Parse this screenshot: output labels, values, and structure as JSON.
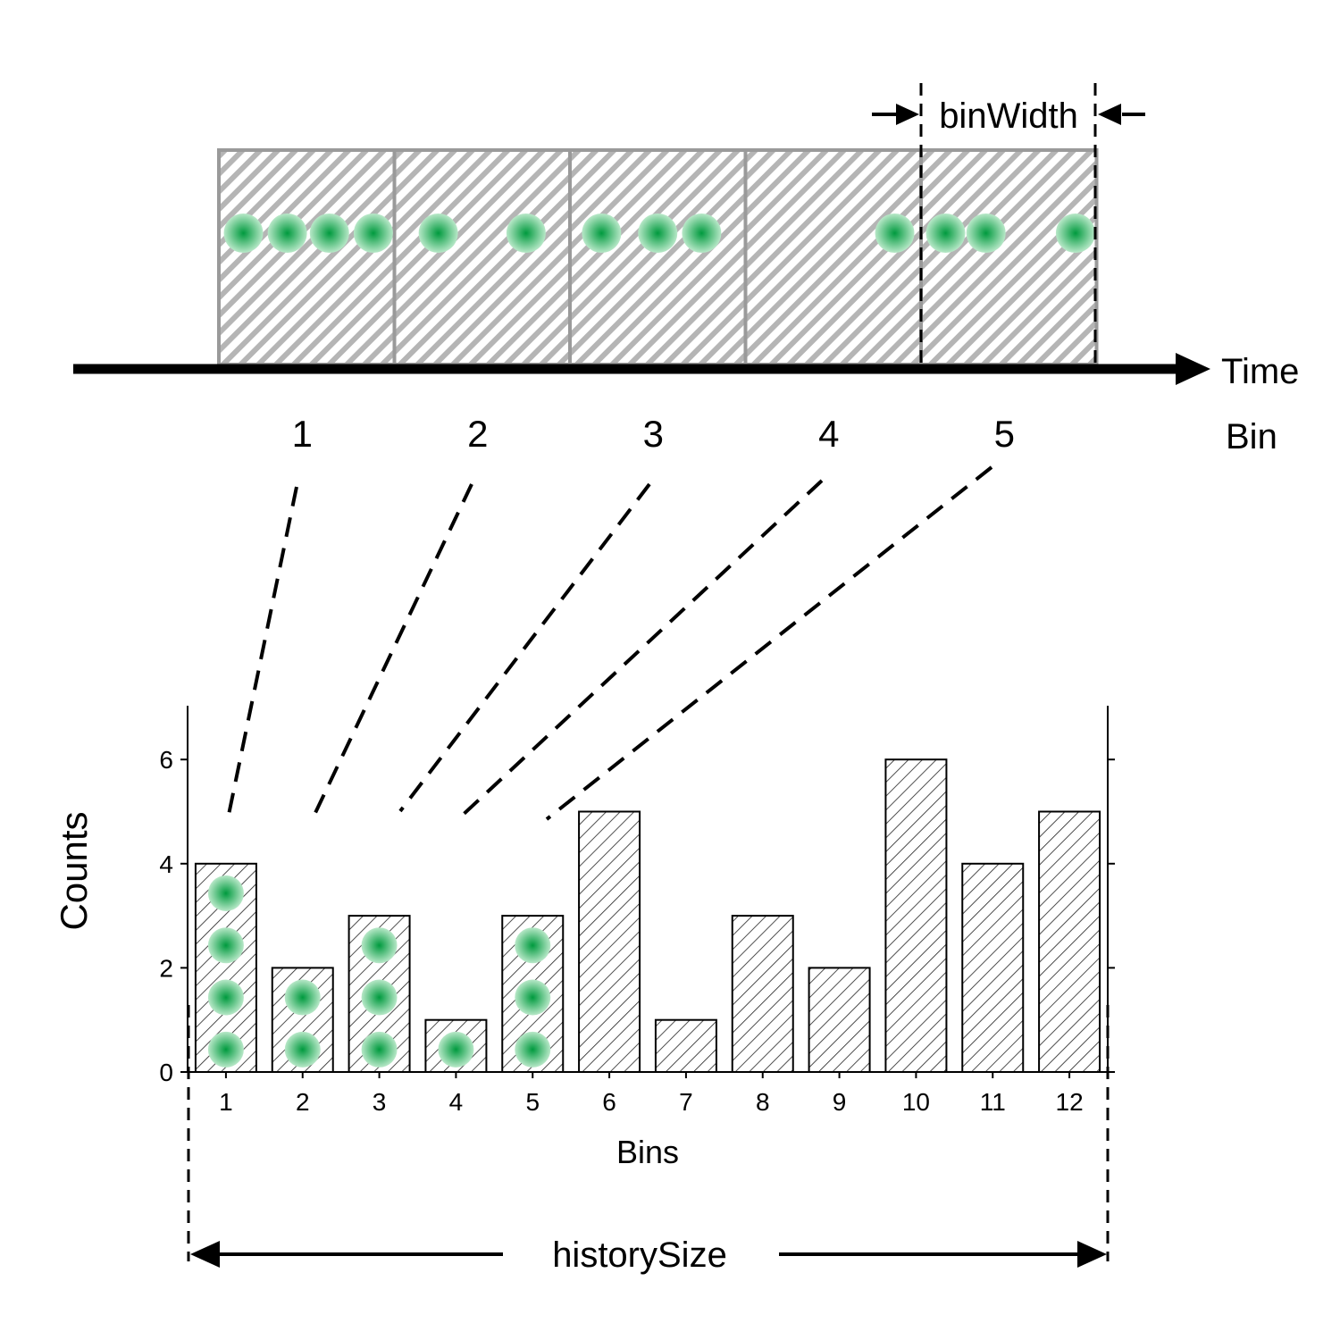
{
  "timeline": {
    "axis_label": "Time",
    "row_label": "Bin",
    "bin_width_label": "binWidth",
    "bins": [
      {
        "label": "1",
        "events": [
          0.14,
          0.39,
          0.63,
          0.88
        ]
      },
      {
        "label": "2",
        "events": [
          0.25,
          0.75
        ]
      },
      {
        "label": "3",
        "events": [
          0.18,
          0.5,
          0.75
        ]
      },
      {
        "label": "4",
        "events": [
          0.85
        ]
      },
      {
        "label": "5",
        "events": [
          0.14,
          0.37,
          0.88
        ]
      }
    ]
  },
  "chart_data": {
    "type": "bar",
    "categories": [
      "1",
      "2",
      "3",
      "4",
      "5",
      "6",
      "7",
      "8",
      "9",
      "10",
      "11",
      "12"
    ],
    "values": [
      4,
      2,
      3,
      1,
      3,
      5,
      1,
      3,
      2,
      6,
      4,
      5
    ],
    "dots_in_bins": [
      4,
      2,
      3,
      1,
      3,
      0,
      0,
      0,
      0,
      0,
      0,
      0
    ],
    "xlabel": "Bins",
    "ylabel": "Counts",
    "ylim": [
      0,
      7
    ],
    "yticks": [
      0,
      2,
      4,
      6
    ],
    "fill": "hatched"
  },
  "history_label": "historySize",
  "colors": {
    "event_core": "#009a3e",
    "event_edge": "#b8e8c8",
    "bin_border": "#9a9a9a"
  }
}
